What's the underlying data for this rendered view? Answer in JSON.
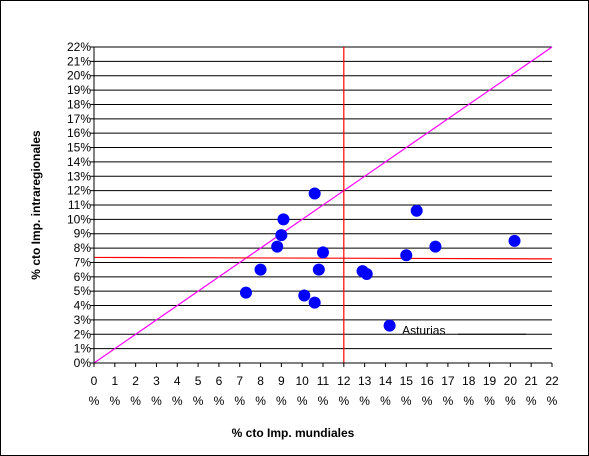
{
  "chart_data": {
    "type": "scatter",
    "xlabel": "% cto Imp. mundiales",
    "ylabel": "% cto Imp. intraregionales",
    "xlim": [
      0,
      22
    ],
    "ylim": [
      0,
      22
    ],
    "x_ticks": [
      0,
      1,
      2,
      3,
      4,
      5,
      6,
      7,
      8,
      9,
      10,
      11,
      12,
      13,
      14,
      15,
      16,
      17,
      18,
      19,
      20,
      21,
      22
    ],
    "y_ticks": [
      0,
      1,
      2,
      3,
      4,
      5,
      6,
      7,
      8,
      9,
      10,
      11,
      12,
      13,
      14,
      15,
      16,
      17,
      18,
      19,
      20,
      21,
      22
    ],
    "tick_suffix": "%",
    "grid": "horizontal",
    "marker_color": "#0000FF",
    "reference_line_color": "#FF0000",
    "diagonal_color": "#FF00FF",
    "diagonal": {
      "from": [
        0,
        0
      ],
      "to": [
        22,
        22
      ]
    },
    "vline_x": 12,
    "hline_y": [
      7.35,
      7.25
    ],
    "points": [
      {
        "x": 7.3,
        "y": 4.9
      },
      {
        "x": 8.0,
        "y": 6.5
      },
      {
        "x": 8.8,
        "y": 8.1
      },
      {
        "x": 9.0,
        "y": 8.9
      },
      {
        "x": 9.1,
        "y": 10.0
      },
      {
        "x": 10.1,
        "y": 4.7
      },
      {
        "x": 10.6,
        "y": 4.2
      },
      {
        "x": 10.6,
        "y": 11.8
      },
      {
        "x": 10.8,
        "y": 6.5
      },
      {
        "x": 11.0,
        "y": 7.7
      },
      {
        "x": 12.9,
        "y": 6.4
      },
      {
        "x": 13.1,
        "y": 6.2
      },
      {
        "x": 14.2,
        "y": 2.6
      },
      {
        "x": 15.0,
        "y": 7.5
      },
      {
        "x": 15.5,
        "y": 10.6
      },
      {
        "x": 16.4,
        "y": 8.1
      },
      {
        "x": 20.2,
        "y": 8.5
      }
    ],
    "annotation": {
      "text": "Asturias",
      "x": 14.8,
      "y": 2.0
    }
  }
}
